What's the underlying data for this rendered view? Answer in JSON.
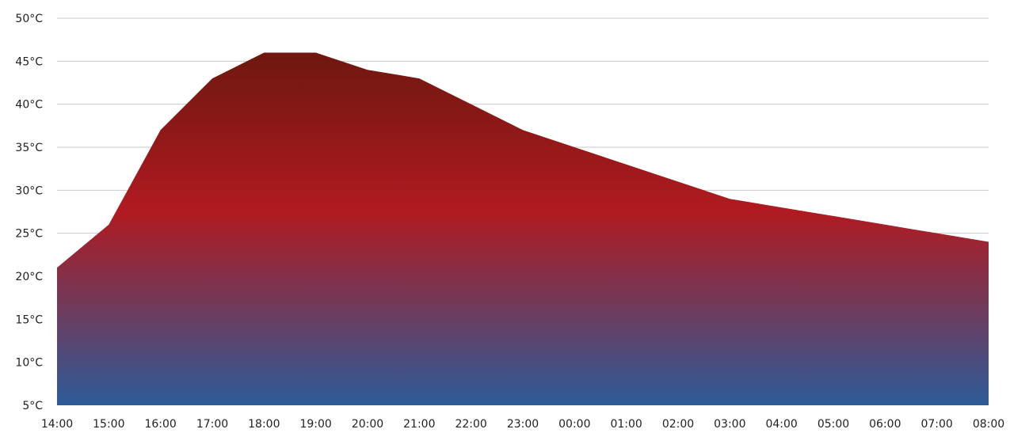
{
  "chart_data": {
    "type": "area",
    "title": "",
    "xlabel": "",
    "ylabel": "",
    "x": [
      "14:00",
      "15:00",
      "16:00",
      "17:00",
      "18:00",
      "19:00",
      "20:00",
      "21:00",
      "22:00",
      "23:00",
      "00:00",
      "01:00",
      "02:00",
      "03:00",
      "04:00",
      "05:00",
      "06:00",
      "07:00",
      "08:00"
    ],
    "series": [
      {
        "values": [
          21,
          26,
          37,
          43,
          46,
          46,
          44,
          43,
          40,
          37,
          35,
          33,
          31,
          29,
          28,
          27,
          26,
          25,
          24
        ]
      }
    ],
    "ylim": [
      5,
      50
    ],
    "y_ticks": [
      5,
      10,
      15,
      20,
      25,
      30,
      35,
      40,
      45,
      50
    ],
    "y_tick_labels": [
      "5°C",
      "10°C",
      "15°C",
      "20°C",
      "25°C",
      "30°C",
      "35°C",
      "40°C",
      "45°C",
      "50°C"
    ],
    "grid": true,
    "legend": "none",
    "colors": {
      "gradient_top": "#6e1710",
      "gradient_mid": "#b01a20",
      "gradient_bottom": "#2e5b98",
      "grid": "#c9c9c9",
      "text": "#222222"
    }
  }
}
